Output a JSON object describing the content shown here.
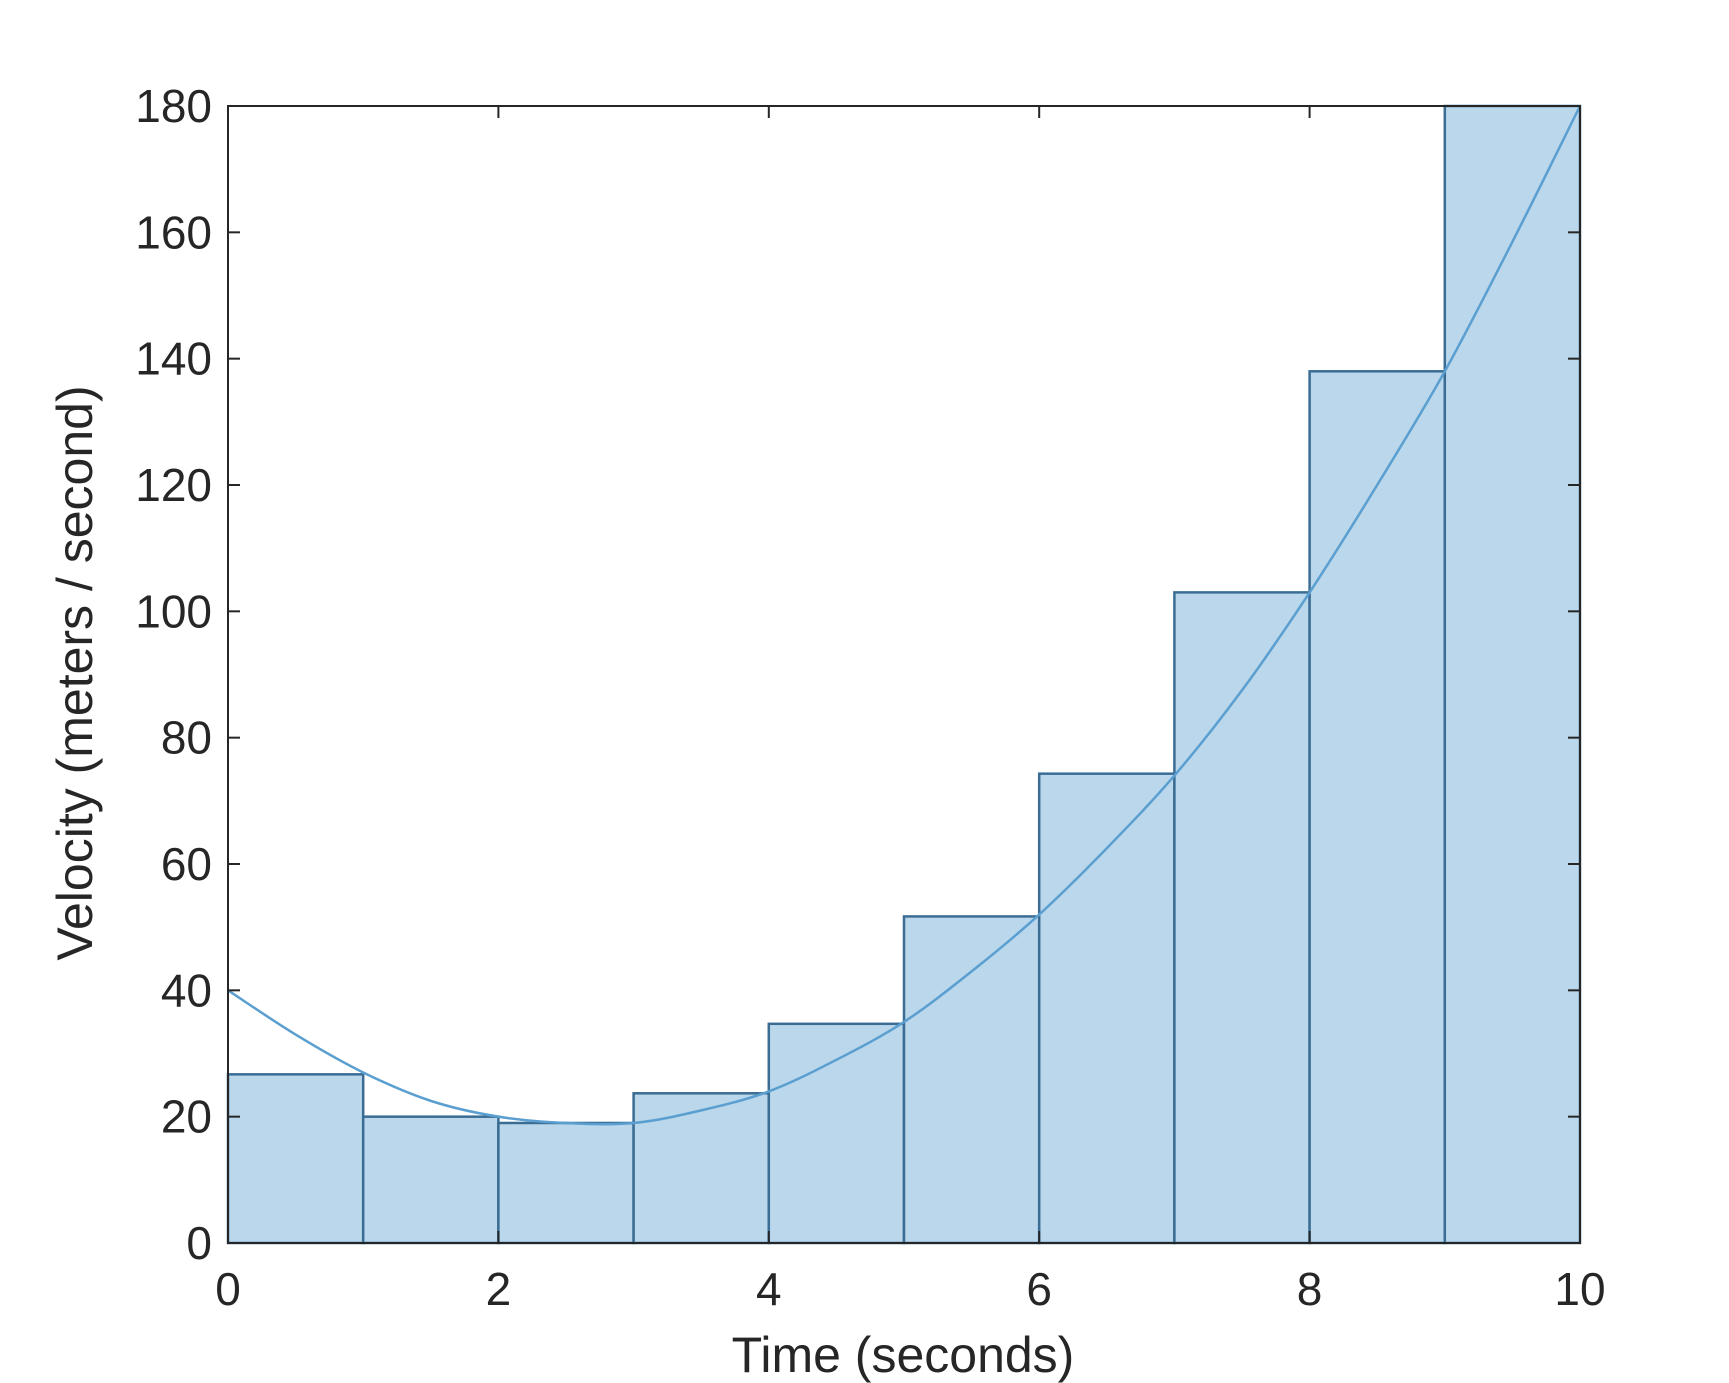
{
  "chart_data": {
    "type": "bar",
    "xlabel": "Time (seconds)",
    "ylabel": "Velocity (meters / second)",
    "xlim": [
      0,
      10
    ],
    "ylim": [
      0,
      180
    ],
    "xticks": [
      0,
      2,
      4,
      6,
      8,
      10
    ],
    "yticks": [
      0,
      20,
      40,
      60,
      80,
      100,
      120,
      140,
      160,
      180
    ],
    "grid": false,
    "bars": {
      "bin_edges": [
        0,
        1,
        2,
        3,
        4,
        5,
        6,
        7,
        8,
        9,
        10
      ],
      "values": [
        26.7,
        20,
        19,
        23.7,
        34.7,
        51.7,
        74.3,
        103,
        138,
        180
      ]
    },
    "curve": {
      "type": "line",
      "x": [
        0,
        0.5,
        1,
        1.5,
        2,
        2.5,
        3,
        3.5,
        4,
        4.5,
        5,
        5.5,
        6,
        6.5,
        7,
        7.5,
        8,
        8.5,
        9,
        9.5,
        10
      ],
      "y": [
        40,
        33,
        27,
        22.5,
        20,
        19,
        19,
        21,
        24,
        29,
        35,
        43,
        52,
        62.5,
        74,
        87.5,
        103,
        120,
        138,
        158.5,
        180
      ]
    },
    "colors": {
      "bar_fill": "#bad7eb",
      "bar_edge": "#3b6d94",
      "line": "#5a9fd0",
      "axis": "#262626"
    }
  }
}
